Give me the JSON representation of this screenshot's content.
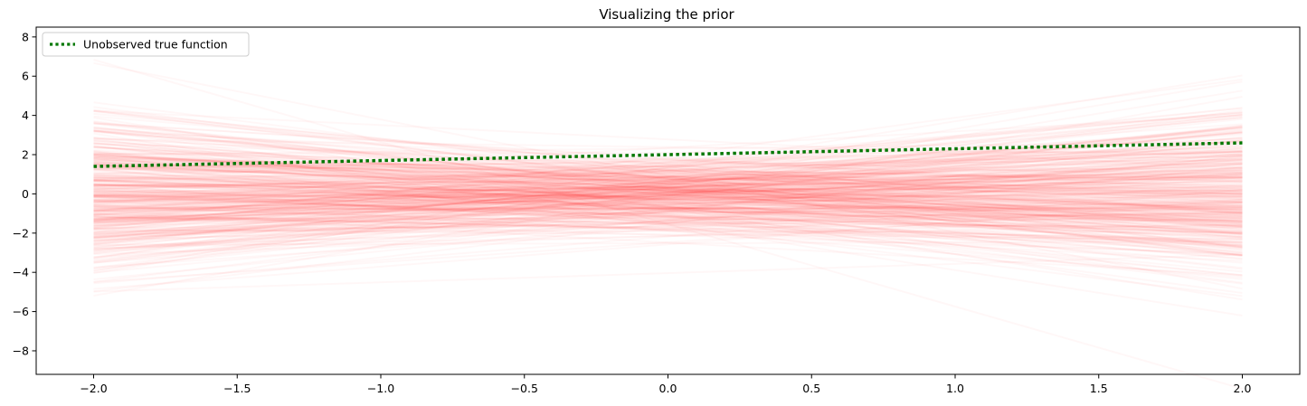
{
  "chart_data": {
    "type": "line",
    "title": "Visualizing the prior",
    "xlabel": "",
    "ylabel": "",
    "xlim": [
      -2.2,
      2.2
    ],
    "ylim": [
      -9.2,
      8.5
    ],
    "xticks": [
      -2.0,
      -1.5,
      -1.0,
      -0.5,
      0.0,
      0.5,
      1.0,
      1.5,
      2.0
    ],
    "xtick_labels": [
      "−2.0",
      "−1.5",
      "−1.0",
      "−0.5",
      "0.0",
      "0.5",
      "1.0",
      "1.5",
      "2.0"
    ],
    "yticks": [
      -8,
      -6,
      -4,
      -2,
      0,
      2,
      4,
      6,
      8
    ],
    "ytick_labels": [
      "−8",
      "−6",
      "−4",
      "−2",
      "0",
      "2",
      "4",
      "6",
      "8"
    ],
    "grid": false,
    "legend": {
      "location": "upper-left"
    },
    "true_function": {
      "name": "Unobserved true function",
      "color": "#007700",
      "style": "dotted",
      "x": [
        -2.0,
        2.0
      ],
      "y": [
        1.4,
        2.6
      ]
    },
    "prior_samples": {
      "color": "#ff0000",
      "count": 400,
      "x": [
        -2.0,
        2.0
      ],
      "intercept_std": 1.0,
      "slope_std": 1.0
    }
  }
}
